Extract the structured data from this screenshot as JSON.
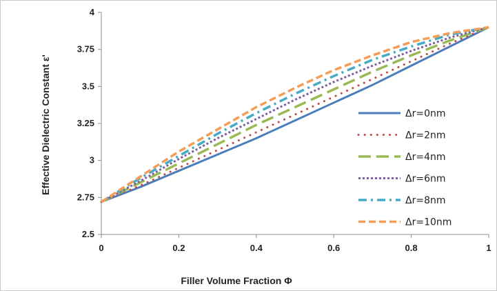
{
  "chart_data": {
    "type": "line",
    "title": "",
    "xlabel": "Filler Volume Fraction Φ",
    "ylabel": "Effective Dielectric Constant ε'",
    "xlim": [
      0,
      1
    ],
    "ylim": [
      2.5,
      4
    ],
    "x_ticks": [
      "0",
      "0.2",
      "0.4",
      "0.6",
      "0.8",
      "1"
    ],
    "y_ticks": [
      "2.5",
      "2.75",
      "3",
      "3.25",
      "3.5",
      "3.75",
      "4"
    ],
    "grid": false,
    "legend_position": "right",
    "x": [
      0,
      0.1,
      0.2,
      0.3,
      0.4,
      0.5,
      0.6,
      0.7,
      0.8,
      0.9,
      1.0
    ],
    "series": [
      {
        "name": "Δr=0nm",
        "color": "#4a7ebb",
        "dash": "solid",
        "values": [
          2.72,
          2.82,
          2.93,
          3.04,
          3.15,
          3.27,
          3.39,
          3.51,
          3.64,
          3.77,
          3.9
        ]
      },
      {
        "name": "Δr=2nm",
        "color": "#be4b48",
        "dash": "round-dot",
        "values": [
          2.72,
          2.83,
          2.95,
          3.07,
          3.19,
          3.31,
          3.43,
          3.55,
          3.67,
          3.79,
          3.9
        ]
      },
      {
        "name": "Δr=4nm",
        "color": "#98b954",
        "dash": "long-dash",
        "values": [
          2.72,
          2.85,
          2.98,
          3.11,
          3.24,
          3.36,
          3.48,
          3.6,
          3.71,
          3.81,
          3.9
        ]
      },
      {
        "name": "Δr=6nm",
        "color": "#7d60a0",
        "dash": "square-dot",
        "values": [
          2.72,
          2.86,
          3.01,
          3.15,
          3.28,
          3.41,
          3.53,
          3.64,
          3.74,
          3.83,
          3.9
        ]
      },
      {
        "name": "Δr=8nm",
        "color": "#46aac5",
        "dash": "dash-dot",
        "values": [
          2.72,
          2.88,
          3.03,
          3.18,
          3.32,
          3.45,
          3.57,
          3.68,
          3.77,
          3.85,
          3.9
        ]
      },
      {
        "name": "Δr=10nm",
        "color": "#f59d56",
        "dash": "dash",
        "values": [
          2.72,
          2.89,
          3.06,
          3.21,
          3.36,
          3.49,
          3.61,
          3.71,
          3.8,
          3.86,
          3.9
        ]
      }
    ]
  }
}
